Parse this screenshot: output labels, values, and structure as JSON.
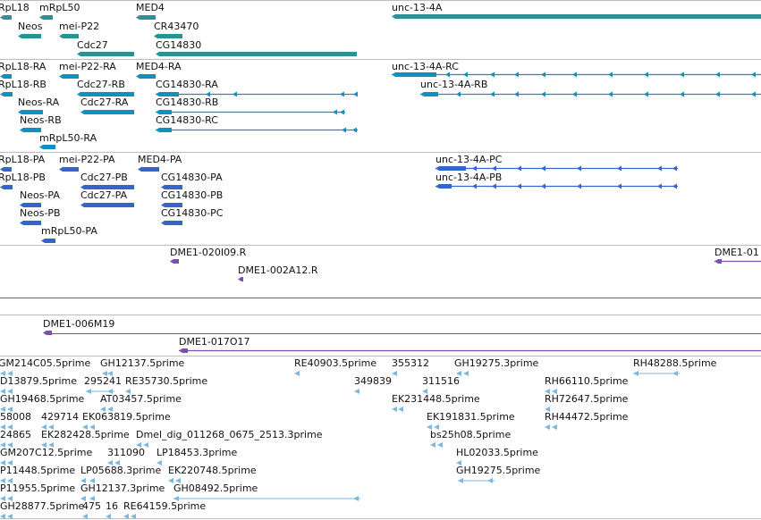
{
  "colors": {
    "gene": "#2e8f96",
    "transcript_rna": "#1190c0",
    "protein": "#3366cc",
    "clone": "#7a4fb0",
    "est": "#7db8df",
    "divider": "#bcbcbc"
  },
  "genes": [
    {
      "label": "RpL18",
      "feature": "gene"
    },
    {
      "label": "mRpL50",
      "feature": "gene"
    },
    {
      "label": "MED4",
      "feature": "gene"
    },
    {
      "label": "unc-13-4A",
      "feature": "gene"
    },
    {
      "label": "Neos",
      "feature": "gene"
    },
    {
      "label": "mei-P22",
      "feature": "gene"
    },
    {
      "label": "CR43470",
      "feature": "gene"
    },
    {
      "label": "Cdc27",
      "feature": "gene"
    },
    {
      "label": "CG14830",
      "feature": "gene"
    }
  ],
  "transcripts": [
    {
      "label": "RpL18-RA"
    },
    {
      "label": "mei-P22-RA"
    },
    {
      "label": "MED4-RA"
    },
    {
      "label": "unc-13-4A-RC"
    },
    {
      "label": "RpL18-RB"
    },
    {
      "label": "Cdc27-RB"
    },
    {
      "label": "CG14830-RA"
    },
    {
      "label": "unc-13-4A-RB"
    },
    {
      "label": "Neos-RA"
    },
    {
      "label": "Cdc27-RA"
    },
    {
      "label": "CG14830-RB"
    },
    {
      "label": "Neos-RB"
    },
    {
      "label": "CG14830-RC"
    },
    {
      "label": "mRpL50-RA"
    }
  ],
  "proteins": [
    {
      "label": "RpL18-PA"
    },
    {
      "label": "mei-P22-PA"
    },
    {
      "label": "MED4-PA"
    },
    {
      "label": "unc-13-4A-PC"
    },
    {
      "label": "RpL18-PB"
    },
    {
      "label": "Cdc27-PB"
    },
    {
      "label": "CG14830-PA"
    },
    {
      "label": "unc-13-4A-PB"
    },
    {
      "label": "Neos-PA"
    },
    {
      "label": "Cdc27-PA"
    },
    {
      "label": "CG14830-PB"
    },
    {
      "label": "Neos-PB"
    },
    {
      "label": "CG14830-PC"
    },
    {
      "label": "mRpL50-PA"
    }
  ],
  "clones": [
    {
      "label": "DME1-020I09.R"
    },
    {
      "label": "DME1-002A12.R"
    },
    {
      "label": "DME1-01"
    },
    {
      "label": "DME1-006M19"
    },
    {
      "label": "DME1-017O17"
    }
  ],
  "ests": [
    {
      "label": "GM214C05.5prime"
    },
    {
      "label": "GH12137.5prime"
    },
    {
      "label": "RE40903.5prime"
    },
    {
      "label": "355312"
    },
    {
      "label": "GH19275.3prime"
    },
    {
      "label": "RH48288.5prime"
    },
    {
      "label": "D13879.5prime"
    },
    {
      "label": "295241"
    },
    {
      "label": "RE35730.5prime"
    },
    {
      "label": "349839"
    },
    {
      "label": "311516"
    },
    {
      "label": "RH66110.5prime"
    },
    {
      "label": "GH19468.5prime"
    },
    {
      "label": "AT03457.5prime"
    },
    {
      "label": "EK231448.5prime"
    },
    {
      "label": "RH72647.5prime"
    },
    {
      "label": "58008"
    },
    {
      "label": "429714"
    },
    {
      "label": "EK063819.5prime"
    },
    {
      "label": "EK191831.5prime"
    },
    {
      "label": "RH44472.5prime"
    },
    {
      "label": "24865"
    },
    {
      "label": "EK282428.5prime"
    },
    {
      "label": "Dmel_dig_011268_0675_2513.3prime"
    },
    {
      "label": "bs25h08.5prime"
    },
    {
      "label": "GM207C12.5prime"
    },
    {
      "label": "311090"
    },
    {
      "label": "LP18453.3prime"
    },
    {
      "label": "HL02033.5prime"
    },
    {
      "label": "P11448.5prime"
    },
    {
      "label": "LP05688.3prime"
    },
    {
      "label": "EK220748.5prime"
    },
    {
      "label": "GH19275.5prime"
    },
    {
      "label": "P11955.5prime"
    },
    {
      "label": "GH12137.3prime"
    },
    {
      "label": "GH08492.5prime"
    },
    {
      "label": "GH28877.5prime"
    },
    {
      "label": "475"
    },
    {
      "label": "16"
    },
    {
      "label": "RE64159.5prime"
    }
  ]
}
